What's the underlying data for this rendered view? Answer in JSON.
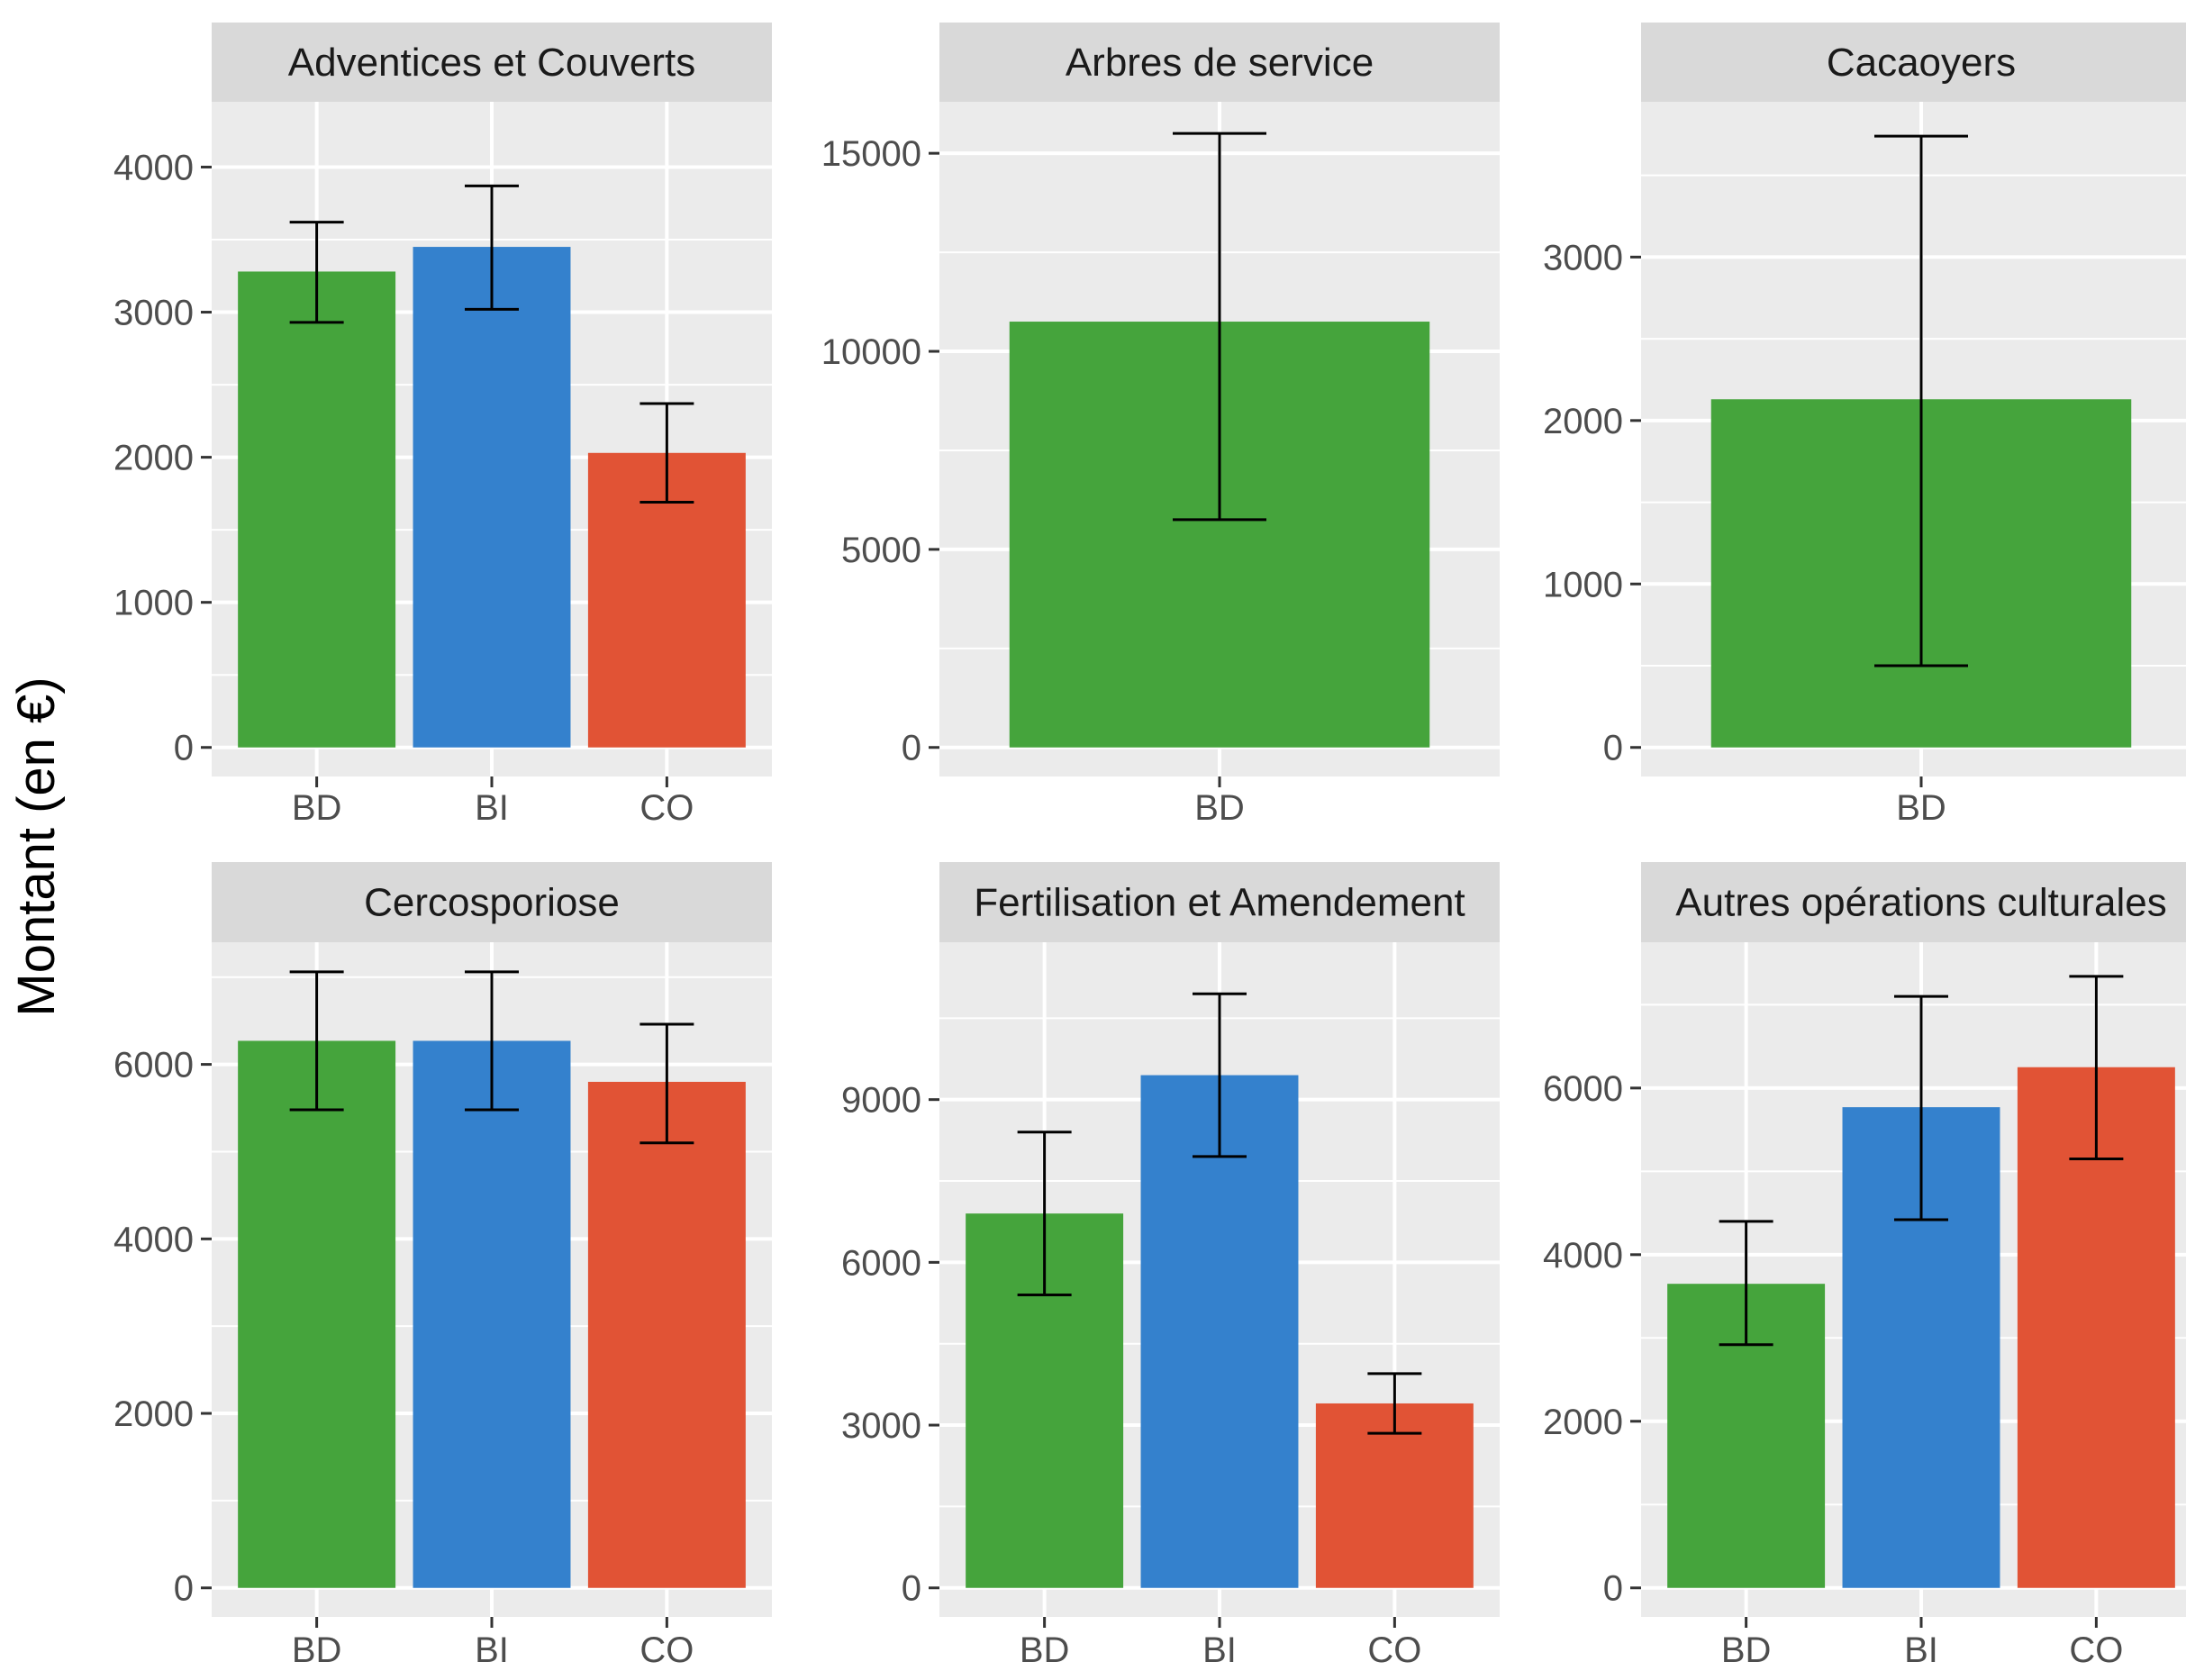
{
  "ylabel": "Montant (en €)",
  "colors": {
    "BD": "#45a43c",
    "BI": "#3481cd",
    "CO": "#e15335",
    "panel_bg": "#ebebeb",
    "strip_bg": "#d9d9d9",
    "grid": "#ffffff",
    "error_bar": "#000000"
  },
  "chart_data": [
    {
      "type": "bar",
      "title": "Adventices et Couverts",
      "categories": [
        "BD",
        "BI",
        "CO"
      ],
      "values": [
        3280,
        3450,
        2030
      ],
      "errors": [
        [
          2930,
          3620
        ],
        [
          3020,
          3870
        ],
        [
          1690,
          2370
        ]
      ],
      "ylim": [
        0,
        4450
      ],
      "yticks": [
        0,
        1000,
        2000,
        3000,
        4000
      ],
      "ytick_labels": [
        "0",
        "1000",
        "2000",
        "3000",
        "4000"
      ],
      "grid": true
    },
    {
      "type": "bar",
      "title": "Arbres de service",
      "categories": [
        "BD"
      ],
      "values": [
        10750
      ],
      "errors": [
        [
          5750,
          15500
        ]
      ],
      "ylim": [
        0,
        16300
      ],
      "yticks": [
        0,
        5000,
        10000,
        15000
      ],
      "ytick_labels": [
        "0",
        "5000",
        "10000",
        "15000"
      ],
      "grid": true
    },
    {
      "type": "bar",
      "title": "Cacaoyers",
      "categories": [
        "BD"
      ],
      "values": [
        2130
      ],
      "errors": [
        [
          500,
          3740
        ]
      ],
      "ylim": [
        0,
        3950
      ],
      "yticks": [
        0,
        1000,
        2000,
        3000
      ],
      "ytick_labels": [
        "0",
        "1000",
        "2000",
        "3000"
      ],
      "grid": true
    },
    {
      "type": "bar",
      "title": "Cercosporiose",
      "categories": [
        "BD",
        "BI",
        "CO"
      ],
      "values": [
        6270,
        6270,
        5800
      ],
      "errors": [
        [
          5480,
          7060
        ],
        [
          5480,
          7060
        ],
        [
          5100,
          6460
        ]
      ],
      "ylim": [
        0,
        7400
      ],
      "yticks": [
        0,
        2000,
        4000,
        6000
      ],
      "ytick_labels": [
        "0",
        "2000",
        "4000",
        "6000"
      ],
      "grid": true
    },
    {
      "type": "bar",
      "title": "Fertilisation et Amendement",
      "categories": [
        "BD",
        "BI",
        "CO"
      ],
      "values": [
        6900,
        9450,
        3400
      ],
      "errors": [
        [
          5400,
          8400
        ],
        [
          7950,
          10950
        ],
        [
          2850,
          3950
        ]
      ],
      "ylim": [
        0,
        11900
      ],
      "yticks": [
        0,
        3000,
        6000,
        9000
      ],
      "ytick_labels": [
        "0",
        "3000",
        "6000",
        "9000"
      ],
      "grid": true
    },
    {
      "type": "bar",
      "title": "Autres opérations culturales",
      "categories": [
        "BD",
        "BI",
        "CO"
      ],
      "values": [
        3650,
        5770,
        6250
      ],
      "errors": [
        [
          2920,
          4400
        ],
        [
          4420,
          7100
        ],
        [
          5150,
          7340
        ]
      ],
      "ylim": [
        0,
        7750
      ],
      "yticks": [
        0,
        2000,
        4000,
        6000
      ],
      "ytick_labels": [
        "0",
        "2000",
        "4000",
        "6000"
      ],
      "grid": true
    }
  ]
}
